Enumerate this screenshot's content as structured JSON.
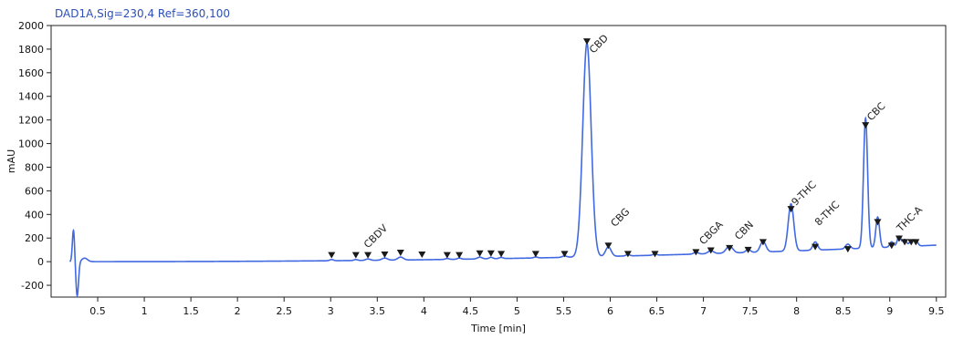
{
  "signal_label": "DAD1A,Sig=230,4  Ref=360,100",
  "colors": {
    "trace": "#4169e1",
    "marker": "#1a1a1a",
    "axis": "#222222",
    "title": "#2c4fb8"
  },
  "chart_data": {
    "type": "line",
    "title": "DAD1A,Sig=230,4  Ref=360,100",
    "xlabel": "Time [min]",
    "ylabel": "mAU",
    "xlim": [
      0.0,
      9.6
    ],
    "ylim": [
      -300,
      2000
    ],
    "xticks": [
      0.5,
      1,
      1.5,
      2,
      2.5,
      3,
      3.5,
      4,
      4.5,
      5,
      5.5,
      6,
      6.5,
      7,
      7.5,
      8,
      8.5,
      9,
      9.5
    ],
    "xtick_labels": [
      "0.5",
      "1",
      "1.5",
      "2",
      "2.5",
      "3",
      "3.5",
      "4",
      "4.5",
      "5",
      "5.5",
      "6",
      "6.5",
      "7",
      "7.5",
      "8",
      "8.5",
      "9",
      "9.5"
    ],
    "yticks": [
      -200,
      0,
      200,
      400,
      600,
      800,
      1000,
      1200,
      1400,
      1600,
      1800,
      2000
    ],
    "ytick_labels": [
      "-200",
      "0",
      "200",
      "400",
      "600",
      "800",
      "1000",
      "1200",
      "1400",
      "1600",
      "1800",
      "2000"
    ],
    "grid": false,
    "baseline": {
      "start": 0,
      "end": 140
    },
    "artifacts": [
      {
        "t": 0.24,
        "h": 270,
        "w": 0.012
      },
      {
        "t": 0.28,
        "h": -290,
        "w": 0.014
      },
      {
        "t": 0.36,
        "h": 30,
        "w": 0.03
      }
    ],
    "peaks": [
      {
        "t": 3.01,
        "h": 10,
        "w": 0.02
      },
      {
        "t": 3.27,
        "h": 8,
        "w": 0.02
      },
      {
        "t": 3.4,
        "h": 12,
        "w": 0.025
      },
      {
        "t": 3.58,
        "h": 18,
        "w": 0.03
      },
      {
        "t": 3.75,
        "h": 25,
        "w": 0.03
      },
      {
        "t": 4.25,
        "h": 8,
        "w": 0.02
      },
      {
        "t": 4.38,
        "h": 10,
        "w": 0.02
      },
      {
        "t": 4.6,
        "h": 15,
        "w": 0.025
      },
      {
        "t": 4.72,
        "h": 12,
        "w": 0.02
      },
      {
        "t": 4.83,
        "h": 10,
        "w": 0.02
      },
      {
        "t": 5.2,
        "h": 8,
        "w": 0.02
      },
      {
        "t": 5.51,
        "h": 12,
        "w": 0.025
      },
      {
        "t": 5.75,
        "h": 1810,
        "w": 0.045
      },
      {
        "t": 5.98,
        "h": 80,
        "w": 0.03
      },
      {
        "t": 6.19,
        "h": 12,
        "w": 0.02
      },
      {
        "t": 6.48,
        "h": 12,
        "w": 0.02
      },
      {
        "t": 6.92,
        "h": 15,
        "w": 0.025
      },
      {
        "t": 7.08,
        "h": 25,
        "w": 0.03
      },
      {
        "t": 7.28,
        "h": 60,
        "w": 0.035
      },
      {
        "t": 7.48,
        "h": 25,
        "w": 0.025
      },
      {
        "t": 7.64,
        "h": 90,
        "w": 0.03
      },
      {
        "t": 7.94,
        "h": 400,
        "w": 0.03
      },
      {
        "t": 8.2,
        "h": 70,
        "w": 0.025
      },
      {
        "t": 8.55,
        "h": 40,
        "w": 0.025
      },
      {
        "t": 8.74,
        "h": 1100,
        "w": 0.022
      },
      {
        "t": 8.87,
        "h": 260,
        "w": 0.02
      },
      {
        "t": 9.02,
        "h": 45,
        "w": 0.02
      },
      {
        "t": 9.1,
        "h": 90,
        "w": 0.02
      },
      {
        "t": 9.16,
        "h": 60,
        "w": 0.02
      },
      {
        "t": 9.23,
        "h": 50,
        "w": 0.02
      },
      {
        "t": 9.28,
        "h": 50,
        "w": 0.02
      }
    ],
    "markers": [
      {
        "t": 3.01,
        "y": 50
      },
      {
        "t": 3.27,
        "y": 50
      },
      {
        "t": 3.4,
        "y": 50
      },
      {
        "t": 3.58,
        "y": 55
      },
      {
        "t": 3.75,
        "y": 70
      },
      {
        "t": 3.98,
        "y": 55
      },
      {
        "t": 4.25,
        "y": 50
      },
      {
        "t": 4.38,
        "y": 50
      },
      {
        "t": 4.6,
        "y": 65
      },
      {
        "t": 4.72,
        "y": 65
      },
      {
        "t": 4.83,
        "y": 60
      },
      {
        "t": 5.2,
        "y": 60
      },
      {
        "t": 5.51,
        "y": 60
      },
      {
        "t": 5.75,
        "y": 1860
      },
      {
        "t": 5.98,
        "y": 130
      },
      {
        "t": 6.19,
        "y": 60
      },
      {
        "t": 6.48,
        "y": 60
      },
      {
        "t": 6.92,
        "y": 75
      },
      {
        "t": 7.08,
        "y": 90
      },
      {
        "t": 7.28,
        "y": 110
      },
      {
        "t": 7.48,
        "y": 95
      },
      {
        "t": 7.64,
        "y": 160
      },
      {
        "t": 7.94,
        "y": 440
      },
      {
        "t": 8.2,
        "y": 120
      },
      {
        "t": 8.55,
        "y": 100
      },
      {
        "t": 8.74,
        "y": 1150
      },
      {
        "t": 8.87,
        "y": 330
      },
      {
        "t": 9.02,
        "y": 130
      },
      {
        "t": 9.1,
        "y": 190
      },
      {
        "t": 9.16,
        "y": 160
      },
      {
        "t": 9.23,
        "y": 160
      },
      {
        "t": 9.28,
        "y": 160
      }
    ],
    "annotations": [
      {
        "label": "CBDV",
        "t": 3.4,
        "y": 110
      },
      {
        "label": "CBD",
        "t": 5.82,
        "y": 1760
      },
      {
        "label": "CBG",
        "t": 6.05,
        "y": 290
      },
      {
        "label": "CBGA",
        "t": 7.0,
        "y": 140
      },
      {
        "label": "CBN",
        "t": 7.38,
        "y": 180
      },
      {
        "label": "9-THC",
        "t": 7.99,
        "y": 470
      },
      {
        "label": "8-THC",
        "t": 8.24,
        "y": 300
      },
      {
        "label": "CBC",
        "t": 8.8,
        "y": 1190
      },
      {
        "label": "THC-A",
        "t": 9.12,
        "y": 250
      }
    ]
  }
}
